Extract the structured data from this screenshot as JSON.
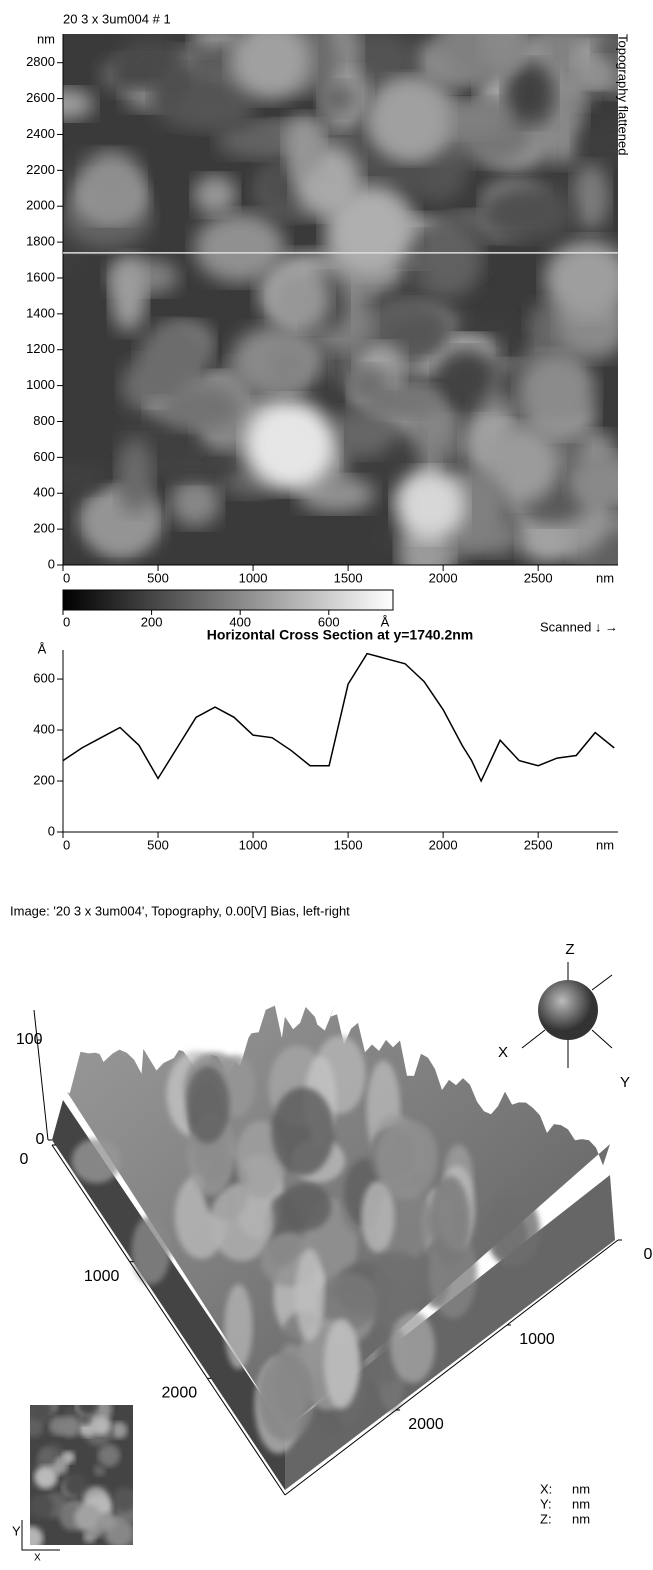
{
  "chart_data": [
    {
      "type": "image",
      "title": "20 3 x 3um004 # 1",
      "side_label": "Topography flattened",
      "x_unit": "nm",
      "y_unit": "nm",
      "xlim": [
        0,
        2920
      ],
      "ylim": [
        0,
        2960
      ],
      "xticks": [
        0,
        500,
        1000,
        1500,
        2000,
        2500
      ],
      "yticks": [
        0,
        200,
        400,
        600,
        800,
        1000,
        1200,
        1400,
        1600,
        1800,
        2000,
        2200,
        2400,
        2600,
        2800
      ],
      "cursor_y": 1740.2,
      "colorbar": {
        "lim": [
          0,
          745
        ],
        "ticks": [
          0,
          200,
          400,
          600
        ],
        "unit": "Å"
      },
      "note": "Scanned ↓ →"
    },
    {
      "type": "line",
      "title": "Horizontal Cross Section at y=1740.2nm",
      "x_unit": "nm",
      "y_unit": "Å",
      "xlim": [
        0,
        2920
      ],
      "ylim": [
        0,
        714
      ],
      "xticks": [
        0,
        500,
        1000,
        1500,
        2000,
        2500
      ],
      "yticks": [
        0,
        200,
        400,
        600
      ],
      "color": "#000000",
      "x": [
        0,
        100,
        200,
        300,
        400,
        500,
        600,
        700,
        800,
        900,
        1000,
        1100,
        1200,
        1300,
        1400,
        1500,
        1600,
        1700,
        1800,
        1900,
        2000,
        2100,
        2150,
        2200,
        2250,
        2300,
        2400,
        2500,
        2600,
        2700,
        2800,
        2900
      ],
      "values": [
        280,
        330,
        370,
        410,
        340,
        210,
        330,
        450,
        490,
        450,
        380,
        370,
        320,
        260,
        260,
        580,
        700,
        680,
        660,
        590,
        480,
        340,
        280,
        200,
        280,
        360,
        280,
        260,
        290,
        300,
        390,
        330
      ]
    },
    {
      "type": "surface",
      "title": "Image: '20 3 x 3um004', Topography, 0.00[V] Bias, left-right",
      "zlim": [
        0,
        130
      ],
      "zticks": [
        0,
        100
      ],
      "xlim": [
        0,
        3000
      ],
      "xticks": [
        0,
        1000,
        2000
      ],
      "ylim": [
        0,
        3000
      ],
      "yticks": [
        0,
        1000,
        2000
      ],
      "orientation": [
        "X",
        "Y",
        "Z"
      ],
      "units": [
        [
          "X:",
          "nm"
        ],
        [
          "Y:",
          "nm"
        ],
        [
          "Z:",
          "nm"
        ]
      ],
      "thumb_axes": [
        "Y",
        "X"
      ]
    }
  ]
}
